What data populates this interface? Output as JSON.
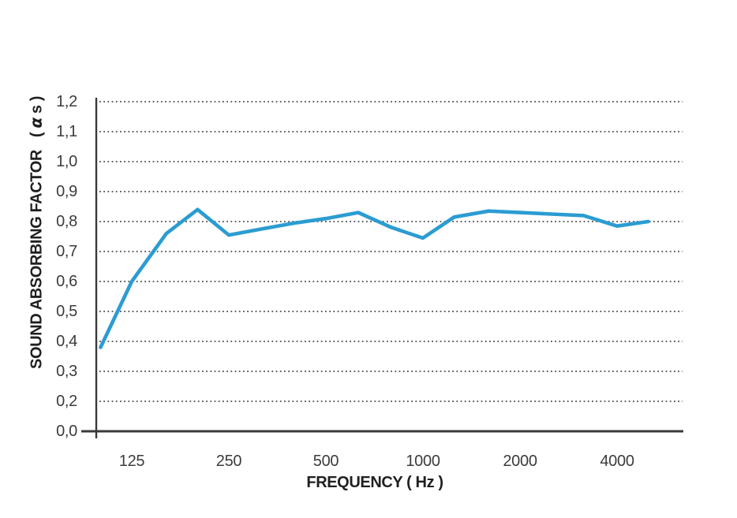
{
  "chart_data": {
    "type": "line",
    "title": "",
    "xlabel": "FREQUENCY ( Hz )",
    "ylabel": "SOUND ABSORBING FACTOR",
    "ylabel_unit": {
      "prefix": "( ",
      "alpha": "α",
      "suffix": " s )"
    },
    "x_scale": "log2",
    "x": [
      100,
      125,
      160,
      200,
      250,
      315,
      400,
      500,
      630,
      800,
      1000,
      1250,
      1600,
      2000,
      2500,
      3150,
      4000,
      5000
    ],
    "series": [
      {
        "name": "sound-absorbing-factor",
        "values": [
          0.38,
          0.6,
          0.76,
          0.84,
          0.755,
          0.775,
          0.795,
          0.81,
          0.83,
          0.78,
          0.745,
          0.815,
          0.835,
          0.83,
          0.825,
          0.82,
          0.785,
          0.8
        ]
      }
    ],
    "ylim": [
      0.0,
      1.2
    ],
    "y_ticks": {
      "labels": [
        "1,2",
        "1,1",
        "1,0",
        "0,9",
        "0,8",
        "0,7",
        "0,6",
        "0,5",
        "0,4",
        "0,3",
        "0,2",
        "0,0"
      ]
    },
    "x_ticks": {
      "labels": [
        "125",
        "250",
        "500",
        "1000",
        "2000",
        "4000"
      ],
      "frequencies": [
        125,
        250,
        500,
        1000,
        2000,
        4000
      ]
    },
    "grid": "horizontal-dotted",
    "legend": "none",
    "colors": {
      "line": "#2B9CD2",
      "axis": "#3a3a3a",
      "grid_dots": "#616161",
      "tick_text": "#3c3c3c",
      "title_text": "#1f1f1f",
      "background": "#ffffff"
    }
  }
}
